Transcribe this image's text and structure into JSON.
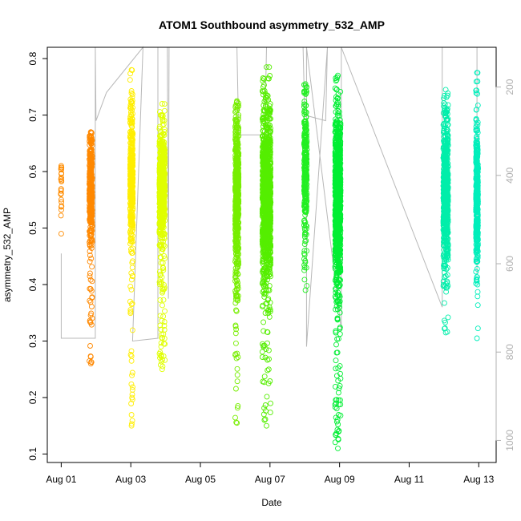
{
  "chart_data": {
    "type": "scatter",
    "title": "ATOM1 Southbound asymmetry_532_AMP",
    "xlabel": "Date",
    "ylabel": "asymmetry_532_AMP",
    "x_ticks": [
      "Aug 01",
      "Aug 03",
      "Aug 05",
      "Aug 07",
      "Aug 09",
      "Aug 11",
      "Aug 13"
    ],
    "x_tick_days": [
      1,
      3,
      5,
      7,
      9,
      11,
      13
    ],
    "xlim_days": [
      0.6,
      13.5
    ],
    "ylim": [
      0.085,
      0.82
    ],
    "y_ticks": [
      0.1,
      0.2,
      0.3,
      0.4,
      0.5,
      0.6,
      0.7,
      0.8
    ],
    "y_tick_labels": [
      "0.1",
      "0.2",
      "0.3",
      "0.4",
      "0.5",
      "0.6",
      "0.7",
      "0.8"
    ],
    "right_axis": {
      "color": "#b0b0b0",
      "ticks": [
        200,
        400,
        600,
        800,
        1000
      ],
      "tick_labels": [
        "200",
        "400",
        "600",
        "800",
        "1000"
      ],
      "range": [
        110,
        1050
      ],
      "inverted": true
    },
    "grid": false,
    "marker": "open-circle",
    "clusters": [
      {
        "day": 1.0,
        "spread": 0.01,
        "center": 0.57,
        "core_sd": 0.03,
        "min": 0.49,
        "max": 0.61,
        "n": 22,
        "color": "#ff8c00"
      },
      {
        "day": 1.85,
        "spread": 0.04,
        "center": 0.57,
        "core_sd": 0.045,
        "min": 0.26,
        "max": 0.67,
        "n": 420,
        "color": "#ff8800"
      },
      {
        "day": 3.02,
        "spread": 0.04,
        "center": 0.59,
        "core_sd": 0.06,
        "min": 0.15,
        "max": 0.78,
        "n": 400,
        "color": "#ffee00"
      },
      {
        "day": 3.9,
        "spread": 0.08,
        "center": 0.57,
        "core_sd": 0.05,
        "min": 0.25,
        "max": 0.72,
        "n": 600,
        "color": "#e0ff00"
      },
      {
        "day": 6.05,
        "spread": 0.05,
        "center": 0.56,
        "core_sd": 0.07,
        "min": 0.155,
        "max": 0.725,
        "n": 600,
        "color": "#77ee00"
      },
      {
        "day": 6.9,
        "spread": 0.12,
        "center": 0.55,
        "core_sd": 0.07,
        "min": 0.15,
        "max": 0.785,
        "n": 1200,
        "color": "#55ee00"
      },
      {
        "day": 8.02,
        "spread": 0.04,
        "center": 0.6,
        "core_sd": 0.06,
        "min": 0.39,
        "max": 0.755,
        "n": 300,
        "color": "#22ee22"
      },
      {
        "day": 8.95,
        "spread": 0.08,
        "center": 0.55,
        "core_sd": 0.07,
        "min": 0.11,
        "max": 0.77,
        "n": 1000,
        "color": "#00ee33"
      },
      {
        "day": 12.05,
        "spread": 0.07,
        "center": 0.56,
        "core_sd": 0.06,
        "min": 0.315,
        "max": 0.745,
        "n": 700,
        "color": "#00eeaa"
      },
      {
        "day": 12.95,
        "spread": 0.03,
        "center": 0.55,
        "core_sd": 0.06,
        "min": 0.305,
        "max": 0.775,
        "n": 400,
        "color": "#00eebb"
      }
    ],
    "grey_line": {
      "color": "#b8b8b8",
      "points": [
        [
          1.0,
          0.455
        ],
        [
          1.0,
          0.305
        ],
        [
          1.98,
          0.305
        ],
        [
          1.98,
          0.82
        ],
        [
          2.0,
          0.69
        ],
        [
          2.3,
          0.74
        ],
        [
          3.35,
          0.82
        ],
        [
          3.05,
          0.3
        ],
        [
          3.78,
          0.305
        ],
        [
          3.78,
          0.82
        ],
        [
          4.05,
          0.82
        ],
        [
          4.08,
          0.375
        ],
        [
          4.1,
          0.82
        ],
        [
          4.5,
          0.82
        ],
        [
          6.05,
          0.82
        ],
        [
          6.1,
          0.665
        ],
        [
          6.85,
          0.665
        ],
        [
          6.9,
          0.82
        ],
        [
          7.1,
          0.82
        ],
        [
          7.95,
          0.82
        ],
        [
          8.0,
          0.7
        ],
        [
          8.3,
          0.695
        ],
        [
          8.6,
          0.69
        ],
        [
          8.65,
          0.82
        ],
        [
          8.05,
          0.29
        ],
        [
          8.05,
          0.82
        ],
        [
          9.05,
          0.32
        ],
        [
          9.05,
          0.82
        ],
        [
          11.95,
          0.36
        ],
        [
          11.95,
          0.82
        ],
        [
          12.95,
          0.82
        ],
        [
          12.95,
          0.42
        ]
      ]
    }
  }
}
